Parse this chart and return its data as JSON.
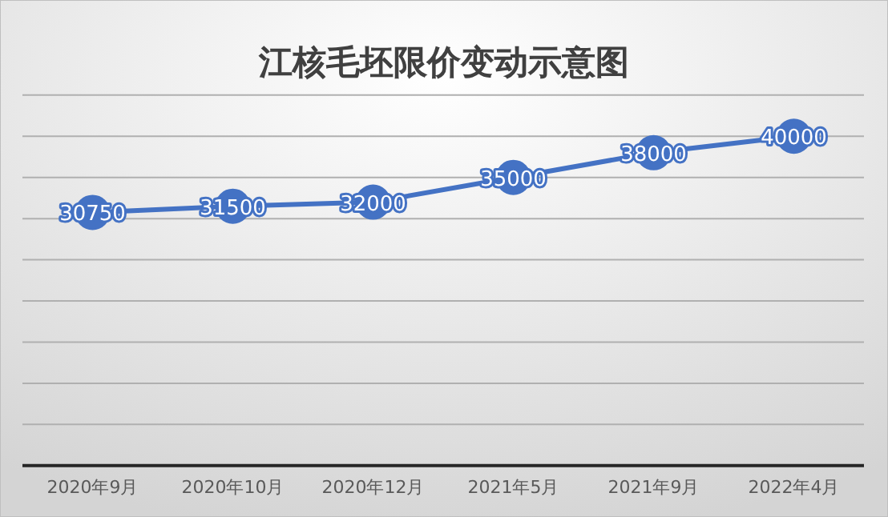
{
  "chart_data": {
    "type": "line",
    "title": "江核毛坯限价变动示意图",
    "categories": [
      "2020年9月",
      "2020年10月",
      "2020年12月",
      "2021年5月",
      "2021年9月",
      "2022年4月"
    ],
    "series": [
      {
        "color": "#4472c4",
        "values": [
          30750,
          31500,
          32000,
          35000,
          38000,
          40000
        ]
      }
    ],
    "ylim": [
      0,
      45000
    ],
    "yticks": [
      {
        "value": 0,
        "label": null
      },
      {
        "value": 5000,
        "label": null
      },
      {
        "value": 10000,
        "label": null
      },
      {
        "value": 15000,
        "label": null
      },
      {
        "value": 20000,
        "label": null
      },
      {
        "value": 25000,
        "label": null
      },
      {
        "value": 30000,
        "label": null
      },
      {
        "value": 35000,
        "label": null
      },
      {
        "value": 40000,
        "label": null
      },
      {
        "value": 45000,
        "label": null
      }
    ],
    "tick_labels": "x",
    "grid": "y",
    "marker": "circle",
    "line_style": "solid",
    "data_labels": true
  }
}
